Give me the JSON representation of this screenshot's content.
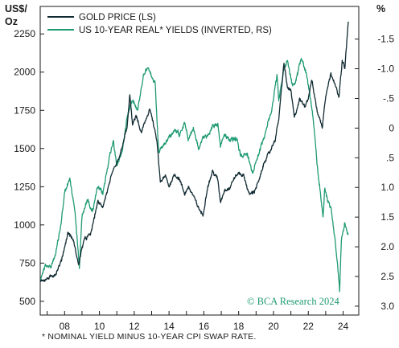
{
  "colors": {
    "gold": "#122b33",
    "yield": "#1f9a73",
    "axis": "#1a1a1a",
    "watermark": "#1f9a73"
  },
  "chart_data": {
    "type": "line",
    "units": {
      "left": "US$/\nOz",
      "right": "%"
    },
    "legend": {
      "placement": "top-left"
    },
    "grid": false,
    "x_ticks": [
      "08",
      "10",
      "12",
      "14",
      "16",
      "18",
      "20",
      "22",
      "24"
    ],
    "x_range": [
      2006.6,
      2024.9
    ],
    "y_left": {
      "ticks": [
        "500",
        "750",
        "1000",
        "1250",
        "1500",
        "1750",
        "2000",
        "2250"
      ],
      "range": [
        410,
        2430
      ]
    },
    "y_right": {
      "ticks": [
        "-1.5",
        "-1.0",
        "-.5",
        "0",
        ".5",
        "1.0",
        "1.5",
        "2.0",
        "2.5",
        "3.0"
      ],
      "range": [
        -2.05,
        3.15
      ],
      "inverted": true
    },
    "series": [
      {
        "name": "GOLD PRICE (LS)",
        "axis": "left",
        "points": [
          [
            2006.6,
            640
          ],
          [
            2006.9,
            640
          ],
          [
            2007.2,
            660
          ],
          [
            2007.5,
            680
          ],
          [
            2007.8,
            760
          ],
          [
            2008.2,
            950
          ],
          [
            2008.5,
            900
          ],
          [
            2008.8,
            740
          ],
          [
            2009.1,
            900
          ],
          [
            2009.5,
            940
          ],
          [
            2009.9,
            1150
          ],
          [
            2010.2,
            1120
          ],
          [
            2010.5,
            1240
          ],
          [
            2010.8,
            1360
          ],
          [
            2011.0,
            1400
          ],
          [
            2011.3,
            1500
          ],
          [
            2011.6,
            1650
          ],
          [
            2011.75,
            1850
          ],
          [
            2011.9,
            1650
          ],
          [
            2012.1,
            1720
          ],
          [
            2012.4,
            1600
          ],
          [
            2012.7,
            1700
          ],
          [
            2012.9,
            1760
          ],
          [
            2013.1,
            1660
          ],
          [
            2013.3,
            1550
          ],
          [
            2013.5,
            1280
          ],
          [
            2013.8,
            1320
          ],
          [
            2014.0,
            1250
          ],
          [
            2014.3,
            1330
          ],
          [
            2014.6,
            1300
          ],
          [
            2014.9,
            1200
          ],
          [
            2015.1,
            1250
          ],
          [
            2015.4,
            1190
          ],
          [
            2015.7,
            1110
          ],
          [
            2015.95,
            1060
          ],
          [
            2016.2,
            1240
          ],
          [
            2016.5,
            1350
          ],
          [
            2016.8,
            1300
          ],
          [
            2016.95,
            1150
          ],
          [
            2017.2,
            1230
          ],
          [
            2017.5,
            1240
          ],
          [
            2017.7,
            1300
          ],
          [
            2018.0,
            1340
          ],
          [
            2018.3,
            1320
          ],
          [
            2018.6,
            1200
          ],
          [
            2018.9,
            1220
          ],
          [
            2019.2,
            1300
          ],
          [
            2019.5,
            1420
          ],
          [
            2019.8,
            1480
          ],
          [
            2020.1,
            1560
          ],
          [
            2020.3,
            1690
          ],
          [
            2020.6,
            2060
          ],
          [
            2020.8,
            1900
          ],
          [
            2021.0,
            1880
          ],
          [
            2021.2,
            1700
          ],
          [
            2021.5,
            1820
          ],
          [
            2021.8,
            1780
          ],
          [
            2022.0,
            1830
          ],
          [
            2022.2,
            1950
          ],
          [
            2022.5,
            1750
          ],
          [
            2022.8,
            1640
          ],
          [
            2023.0,
            1850
          ],
          [
            2023.3,
            1990
          ],
          [
            2023.5,
            1940
          ],
          [
            2023.75,
            1830
          ],
          [
            2023.95,
            2070
          ],
          [
            2024.1,
            2030
          ],
          [
            2024.3,
            2330
          ]
        ]
      },
      {
        "name": "US 10-YEAR REAL* YIELDS (INVERTED, RS)",
        "axis": "right",
        "points": [
          [
            2006.6,
            2.55
          ],
          [
            2006.9,
            2.3
          ],
          [
            2007.2,
            2.35
          ],
          [
            2007.5,
            2.1
          ],
          [
            2007.8,
            1.6
          ],
          [
            2008.0,
            1.1
          ],
          [
            2008.3,
            0.85
          ],
          [
            2008.6,
            1.4
          ],
          [
            2008.85,
            2.35
          ],
          [
            2009.0,
            1.5
          ],
          [
            2009.3,
            1.2
          ],
          [
            2009.6,
            1.4
          ],
          [
            2009.9,
            1.0
          ],
          [
            2010.2,
            1.1
          ],
          [
            2010.5,
            0.6
          ],
          [
            2010.8,
            0.2
          ],
          [
            2011.0,
            0.65
          ],
          [
            2011.3,
            0.4
          ],
          [
            2011.6,
            -0.2
          ],
          [
            2011.9,
            -0.5
          ],
          [
            2012.2,
            -0.3
          ],
          [
            2012.5,
            -0.85
          ],
          [
            2012.75,
            -1.05
          ],
          [
            2013.0,
            -0.85
          ],
          [
            2013.2,
            -0.75
          ],
          [
            2013.4,
            0.4
          ],
          [
            2013.7,
            0.3
          ],
          [
            2014.0,
            0.15
          ],
          [
            2014.3,
            0.05
          ],
          [
            2014.6,
            0.1
          ],
          [
            2014.9,
            -0.1
          ],
          [
            2015.1,
            0.2
          ],
          [
            2015.4,
            0.0
          ],
          [
            2015.7,
            0.35
          ],
          [
            2016.0,
            0.15
          ],
          [
            2016.3,
            0.1
          ],
          [
            2016.5,
            -0.05
          ],
          [
            2016.8,
            -0.05
          ],
          [
            2016.95,
            0.3
          ],
          [
            2017.2,
            0.1
          ],
          [
            2017.5,
            0.2
          ],
          [
            2017.9,
            0.2
          ],
          [
            2018.1,
            0.45
          ],
          [
            2018.5,
            0.45
          ],
          [
            2018.8,
            0.75
          ],
          [
            2019.0,
            0.55
          ],
          [
            2019.3,
            0.3
          ],
          [
            2019.6,
            0.0
          ],
          [
            2019.9,
            -0.3
          ],
          [
            2020.2,
            -0.9
          ],
          [
            2020.3,
            -0.45
          ],
          [
            2020.6,
            -1.0
          ],
          [
            2020.8,
            -1.15
          ],
          [
            2021.1,
            -0.7
          ],
          [
            2021.3,
            -0.8
          ],
          [
            2021.6,
            -1.2
          ],
          [
            2021.9,
            -0.9
          ],
          [
            2022.1,
            -0.55
          ],
          [
            2022.3,
            -0.1
          ],
          [
            2022.5,
            0.6
          ],
          [
            2022.7,
            1.1
          ],
          [
            2022.85,
            1.5
          ],
          [
            2022.95,
            1.0
          ],
          [
            2023.1,
            1.2
          ],
          [
            2023.3,
            1.35
          ],
          [
            2023.5,
            1.8
          ],
          [
            2023.65,
            2.2
          ],
          [
            2023.8,
            2.75
          ],
          [
            2023.9,
            1.9
          ],
          [
            2024.1,
            1.6
          ],
          [
            2024.3,
            1.8
          ]
        ]
      }
    ],
    "watermark": "© BCA Research 2024",
    "footnote": "* NOMINAL YIELD MINUS 10-YEAR CPI SWAP RATE."
  }
}
